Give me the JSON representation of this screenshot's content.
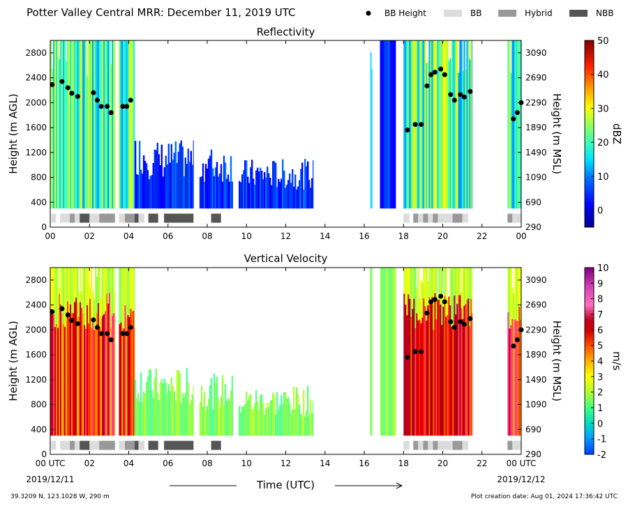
{
  "figure_title": "Potter Valley Central MRR:  December 11, 2019 UTC",
  "legend": [
    {
      "name": "BB Height",
      "marker": "dot",
      "color": "#000000"
    },
    {
      "name": "BB",
      "marker": "box",
      "color": "#dcdcdc"
    },
    {
      "name": "Hybrid",
      "marker": "box",
      "color": "#999999"
    },
    {
      "name": "NBB",
      "marker": "box",
      "color": "#555555"
    }
  ],
  "x_axis": {
    "label": "Time (UTC)",
    "range_hours": [
      0,
      24
    ],
    "ticks": [
      0,
      2,
      4,
      6,
      8,
      10,
      12,
      14,
      16,
      18,
      20,
      22,
      24
    ],
    "tick_labels_top": [
      "00",
      "02",
      "04",
      "06",
      "08",
      "10",
      "12",
      "14",
      "16",
      "18",
      "20",
      "22",
      "00"
    ],
    "tick_labels_bottom": [
      "00 UTC",
      "02",
      "04",
      "06",
      "08",
      "10",
      "12",
      "14",
      "16",
      "18",
      "20",
      "22",
      "00 UTC"
    ],
    "start_date": "2019/12/11",
    "end_date": "2019/12/12"
  },
  "footer_left": "39.3209 N, 123.1028 W, 290 m",
  "footer_right": "Plot creation date: Aug 01, 2024 17:36:42 UTC",
  "chart_data": [
    {
      "type": "heatmap",
      "title": "Reflectivity",
      "ylabel": "Height (m AGL)",
      "ylabel_right": "Height (m MSL)",
      "ylim": [
        0,
        3000
      ],
      "yticks": [
        0,
        400,
        800,
        1200,
        1600,
        2000,
        2400,
        2800
      ],
      "yticks_right": [
        290,
        690,
        1090,
        1490,
        1890,
        2290,
        2690,
        3090
      ],
      "colorbar": {
        "label": "dBZ",
        "range": [
          -5,
          50
        ],
        "ticks": [
          0,
          10,
          20,
          30,
          40,
          50
        ]
      },
      "data_min_height": 300
    },
    {
      "type": "heatmap",
      "title": "Vertical Velocity",
      "ylabel": "Height (m AGL)",
      "ylabel_right": "Height (m MSL)",
      "ylim": [
        0,
        3000
      ],
      "yticks": [
        0,
        400,
        800,
        1200,
        1600,
        2000,
        2400,
        2800
      ],
      "yticks_right": [
        290,
        690,
        1090,
        1490,
        1890,
        2290,
        2690,
        3090
      ],
      "colorbar": {
        "label": "m/s",
        "range": [
          -2,
          10
        ],
        "ticks": [
          -2,
          -1,
          0,
          1,
          2,
          3,
          4,
          5,
          6,
          7,
          8,
          9,
          10
        ]
      },
      "data_min_height": 300
    }
  ],
  "echo_periods": [
    {
      "start": 0.0,
      "end": 3.3,
      "top": 3000,
      "intensity": "moderate"
    },
    {
      "start": 3.5,
      "end": 4.3,
      "top": 3000,
      "intensity": "moderate"
    },
    {
      "start": 4.3,
      "end": 5.0,
      "top": 1500,
      "intensity": "weak"
    },
    {
      "start": 5.0,
      "end": 7.3,
      "top": 1400,
      "intensity": "weak"
    },
    {
      "start": 7.6,
      "end": 9.3,
      "top": 1300,
      "intensity": "weak"
    },
    {
      "start": 9.6,
      "end": 13.4,
      "top": 1100,
      "intensity": "weak"
    },
    {
      "start": 16.3,
      "end": 16.4,
      "top": 3000,
      "intensity": "trace"
    },
    {
      "start": 16.8,
      "end": 17.6,
      "top": 3000,
      "intensity": "weak"
    },
    {
      "start": 18.0,
      "end": 21.5,
      "top": 3000,
      "intensity": "strong"
    },
    {
      "start": 23.3,
      "end": 24.0,
      "top": 3000,
      "intensity": "moderate"
    }
  ],
  "bb_height_points": [
    [
      0.1,
      2290
    ],
    [
      0.6,
      2340
    ],
    [
      0.9,
      2240
    ],
    [
      1.1,
      2150
    ],
    [
      1.4,
      2100
    ],
    [
      2.2,
      2160
    ],
    [
      2.4,
      2040
    ],
    [
      2.6,
      1940
    ],
    [
      2.9,
      1940
    ],
    [
      3.1,
      1840
    ],
    [
      3.7,
      1940
    ],
    [
      3.9,
      1940
    ],
    [
      4.1,
      2040
    ],
    [
      18.2,
      1560
    ],
    [
      18.6,
      1650
    ],
    [
      18.9,
      1650
    ],
    [
      19.2,
      2270
    ],
    [
      19.4,
      2450
    ],
    [
      19.6,
      2490
    ],
    [
      19.9,
      2540
    ],
    [
      20.1,
      2450
    ],
    [
      20.4,
      2130
    ],
    [
      20.6,
      2040
    ],
    [
      20.9,
      2130
    ],
    [
      21.1,
      2090
    ],
    [
      21.4,
      2180
    ],
    [
      23.6,
      1740
    ],
    [
      23.8,
      1840
    ],
    [
      24.0,
      2000
    ]
  ],
  "bb_type_segments": [
    {
      "start": 0.05,
      "end": 0.3,
      "type": "BB"
    },
    {
      "start": 0.5,
      "end": 1.0,
      "type": "BB"
    },
    {
      "start": 1.0,
      "end": 1.25,
      "type": "Hybrid"
    },
    {
      "start": 1.25,
      "end": 1.5,
      "type": "BB"
    },
    {
      "start": 1.5,
      "end": 2.0,
      "type": "NBB"
    },
    {
      "start": 2.0,
      "end": 2.5,
      "type": "BB"
    },
    {
      "start": 2.5,
      "end": 3.3,
      "type": "Hybrid"
    },
    {
      "start": 3.5,
      "end": 3.8,
      "type": "BB"
    },
    {
      "start": 3.8,
      "end": 4.3,
      "type": "Hybrid"
    },
    {
      "start": 4.3,
      "end": 4.5,
      "type": "NBB"
    },
    {
      "start": 4.5,
      "end": 4.8,
      "type": "BB"
    },
    {
      "start": 5.0,
      "end": 5.5,
      "type": "NBB"
    },
    {
      "start": 5.8,
      "end": 7.3,
      "type": "NBB"
    },
    {
      "start": 8.2,
      "end": 8.7,
      "type": "NBB"
    },
    {
      "start": 18.0,
      "end": 18.3,
      "type": "BB"
    },
    {
      "start": 18.5,
      "end": 18.75,
      "type": "Hybrid"
    },
    {
      "start": 18.75,
      "end": 19.0,
      "type": "BB"
    },
    {
      "start": 19.0,
      "end": 19.25,
      "type": "Hybrid"
    },
    {
      "start": 19.25,
      "end": 19.5,
      "type": "BB"
    },
    {
      "start": 19.5,
      "end": 19.75,
      "type": "Hybrid"
    },
    {
      "start": 19.75,
      "end": 20.5,
      "type": "BB"
    },
    {
      "start": 20.5,
      "end": 21.0,
      "type": "Hybrid"
    },
    {
      "start": 21.0,
      "end": 21.3,
      "type": "BB"
    },
    {
      "start": 23.3,
      "end": 23.55,
      "type": "Hybrid"
    },
    {
      "start": 23.55,
      "end": 24.0,
      "type": "BB"
    }
  ]
}
